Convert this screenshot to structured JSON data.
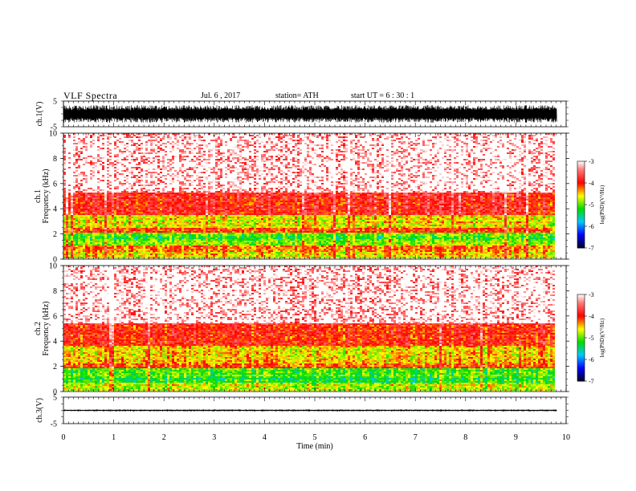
{
  "header": {
    "title": "VLF  Spectra",
    "date": "Jul.  6  , 2017",
    "station": "station= ATH",
    "start": "start  UT  =    6  : 30 : 1"
  },
  "chart_data": [
    {
      "type": "line",
      "panel": "ch1-waveform",
      "ylabel": "ch.1(V)",
      "yticks": [
        "5",
        "-5"
      ],
      "ylim": [
        -5,
        5
      ],
      "x_range_min": [
        0,
        9.8
      ],
      "description_values": {
        "amplitude_approx": [
          -3.5,
          3.5
        ]
      }
    },
    {
      "type": "heatmap",
      "panel": "ch1-spectrogram",
      "ylabel_top": "ch.1",
      "ylabel": "Frequency  (kHz)",
      "yticks": [
        "0",
        "2",
        "4",
        "6",
        "8",
        "10"
      ],
      "ylim": [
        0,
        10
      ],
      "xlim": [
        0,
        9.8
      ],
      "bands_kHz": [
        {
          "from": 0.0,
          "to": 0.5,
          "level": -4.6
        },
        {
          "from": 0.5,
          "to": 1.0,
          "level": -4.3
        },
        {
          "from": 1.0,
          "to": 1.5,
          "level": -4.9
        },
        {
          "from": 1.5,
          "to": 2.0,
          "level": -5.1
        },
        {
          "from": 2.0,
          "to": 2.5,
          "level": -4.2
        },
        {
          "from": 2.5,
          "to": 3.5,
          "level": -4.6
        },
        {
          "from": 3.5,
          "to": 5.2,
          "level": -3.9
        },
        {
          "from": 5.2,
          "to": 10.0,
          "level": -3.4
        }
      ],
      "colorbar": {
        "label": "log(PSD)(V²/Hz)",
        "ticks": [
          "-3",
          "-4",
          "-5",
          "-6",
          "-7"
        ],
        "range": [
          -7,
          -3
        ]
      }
    },
    {
      "type": "heatmap",
      "panel": "ch2-spectrogram",
      "ylabel_top": "ch.2",
      "ylabel": "Frequency  (kHz)",
      "yticks": [
        "0",
        "2",
        "4",
        "6",
        "8",
        "10"
      ],
      "ylim": [
        0,
        10
      ],
      "xlim": [
        0,
        9.8
      ],
      "bands_kHz": [
        {
          "from": 0.0,
          "to": 0.6,
          "level": -4.7
        },
        {
          "from": 0.6,
          "to": 1.0,
          "level": -5.2
        },
        {
          "from": 1.0,
          "to": 1.8,
          "level": -5.0
        },
        {
          "from": 1.8,
          "to": 2.2,
          "level": -4.1
        },
        {
          "from": 2.2,
          "to": 3.6,
          "level": -4.5
        },
        {
          "from": 3.6,
          "to": 5.4,
          "level": -3.95
        },
        {
          "from": 5.4,
          "to": 10.0,
          "level": -3.35
        }
      ],
      "colorbar": {
        "label": "log(PSD)(V²/Hz)",
        "ticks": [
          "-3",
          "-4",
          "-5",
          "-6",
          "-7"
        ],
        "range": [
          -7,
          -3
        ]
      }
    },
    {
      "type": "line",
      "panel": "ch3-waveform",
      "ylabel": "ch.3(V)",
      "yticks": [
        "5",
        "-5"
      ],
      "ylim": [
        -5,
        5
      ],
      "xlim": [
        0,
        9.8
      ],
      "description_values": {
        "amplitude_approx": [
          -0.3,
          0.3
        ]
      }
    }
  ],
  "xaxis": {
    "label": "Time  (min)",
    "ticks": [
      "0",
      "1",
      "2",
      "3",
      "4",
      "5",
      "6",
      "7",
      "8",
      "9",
      "10"
    ],
    "range": [
      0,
      10
    ]
  },
  "colors": {
    "spectrum_low": "#000040",
    "spectrum_blue": "#0000ff",
    "spectrum_cyan": "#00e0ff",
    "spectrum_green": "#00e000",
    "spectrum_yellow": "#ffff00",
    "spectrum_red": "#ff0000",
    "spectrum_high": "#ffffff"
  }
}
